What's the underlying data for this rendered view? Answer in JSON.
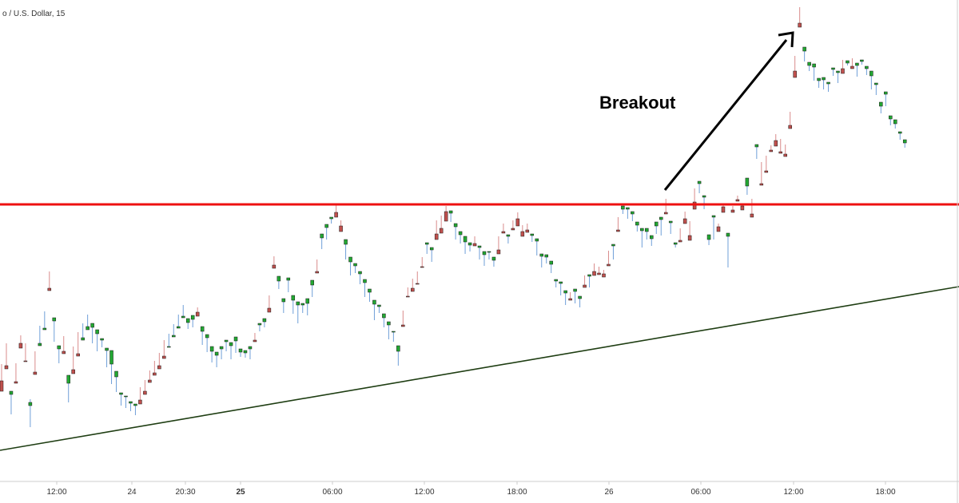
{
  "chart_data": {
    "type": "candlestick",
    "symbol_title": "o / U.S. Dollar, 15",
    "x_ticks": [
      {
        "label": "12:00",
        "bold": false
      },
      {
        "label": "24",
        "bold": false
      },
      {
        "label": "20:30",
        "bold": false
      },
      {
        "label": "25",
        "bold": true
      },
      {
        "label": "06:00",
        "bold": false
      },
      {
        "label": "12:00",
        "bold": false
      },
      {
        "label": "18:00",
        "bold": false
      },
      {
        "label": "26",
        "bold": false
      },
      {
        "label": "06:00",
        "bold": false
      },
      {
        "label": "12:00",
        "bold": false
      },
      {
        "label": "18:00",
        "bold": false
      }
    ],
    "annotation": {
      "text": "Breakout",
      "type": "arrow"
    },
    "resistance_line": {
      "color": "#ee1111"
    },
    "support_trendline": {
      "color": "#1e3d12"
    },
    "colors": {
      "bull": "#22a832",
      "bear": "#c0504d",
      "wick_bull": "#6f9fd8",
      "wick_bear": "#d98b8b",
      "grid": "#cccccc"
    },
    "candles": [
      [
        490,
        477,
        456,
        460
      ],
      [
        462,
        458,
        430,
        447
      ],
      [
        490,
        494,
        519,
        508
      ],
      [
        480,
        478,
        455,
        460
      ],
      [
        436,
        430,
        420,
        425
      ],
      [
        452,
        452,
        430,
        445
      ],
      [
        504,
        508,
        535,
        500
      ],
      [
        469,
        466,
        440,
        448
      ],
      [
        430,
        433,
        408,
        412
      ],
      [
        411,
        413,
        390,
        394
      ],
      [
        364,
        361,
        340,
        350
      ],
      [
        398,
        402,
        428,
        416
      ],
      [
        433,
        437,
        455,
        450
      ],
      [
        443,
        440,
        421,
        428
      ],
      [
        470,
        480,
        504,
        496
      ],
      [
        468,
        463,
        434,
        452
      ],
      [
        446,
        443,
        416,
        425
      ],
      [
        423,
        426,
        405,
        409
      ],
      [
        409,
        413,
        394,
        398
      ],
      [
        405,
        410,
        430,
        417
      ],
      [
        413,
        418,
        440,
        425
      ],
      [
        424,
        426,
        435,
        430
      ],
      [
        436,
        439,
        460,
        451
      ],
      [
        439,
        456,
        481,
        467
      ],
      [
        465,
        472,
        491,
        478
      ],
      [
        492,
        494,
        508,
        500
      ],
      [
        496,
        497,
        511,
        503
      ],
      [
        503,
        505,
        515,
        508
      ],
      [
        506,
        508,
        520,
        511
      ],
      [
        506,
        501,
        485,
        493
      ],
      [
        494,
        490,
        476,
        482
      ],
      [
        479,
        476,
        464,
        470
      ],
      [
        470,
        467,
        452,
        456
      ],
      [
        462,
        458,
        442,
        448
      ],
      [
        449,
        446,
        426,
        434
      ],
      [
        434,
        435,
        418,
        424
      ],
      [
        420,
        422,
        406,
        411
      ],
      [
        409,
        411,
        394,
        399
      ],
      [
        396,
        398,
        382,
        388
      ],
      [
        399,
        404,
        412,
        407
      ],
      [
        395,
        400,
        410,
        404
      ],
      [
        396,
        391,
        385,
        390
      ],
      [
        409,
        415,
        432,
        420
      ],
      [
        419,
        423,
        441,
        429
      ],
      [
        434,
        440,
        454,
        446
      ],
      [
        441,
        445,
        460,
        451
      ],
      [
        434,
        437,
        450,
        444
      ],
      [
        426,
        428,
        440,
        432
      ],
      [
        429,
        433,
        450,
        438
      ],
      [
        422,
        427,
        442,
        431
      ],
      [
        437,
        441,
        447,
        444
      ],
      [
        439,
        442,
        448,
        444
      ],
      [
        434,
        437,
        450,
        441
      ],
      [
        428,
        426,
        417,
        423
      ],
      [
        405,
        407,
        415,
        410
      ],
      [
        399,
        403,
        410,
        405
      ],
      [
        391,
        386,
        370,
        378
      ],
      [
        336,
        332,
        321,
        325
      ],
      [
        346,
        352,
        362,
        355
      ],
      [
        374,
        378,
        392,
        384
      ],
      [
        348,
        351,
        366,
        357
      ],
      [
        370,
        376,
        393,
        381
      ],
      [
        378,
        382,
        405,
        386
      ],
      [
        380,
        382,
        392,
        387
      ],
      [
        374,
        380,
        395,
        381
      ],
      [
        351,
        357,
        372,
        360
      ],
      [
        342,
        340,
        325,
        330
      ],
      [
        293,
        298,
        312,
        302
      ],
      [
        281,
        285,
        300,
        290
      ],
      [
        272,
        274,
        280,
        277
      ],
      [
        272,
        266,
        256,
        263
      ],
      [
        290,
        283,
        276,
        280
      ],
      [
        300,
        306,
        325,
        314
      ],
      [
        322,
        328,
        345,
        331
      ],
      [
        330,
        333,
        342,
        335
      ],
      [
        340,
        343,
        356,
        347
      ],
      [
        350,
        354,
        372,
        360
      ],
      [
        362,
        366,
        378,
        370
      ],
      [
        376,
        381,
        401,
        388
      ],
      [
        382,
        384,
        392,
        386
      ],
      [
        393,
        398,
        410,
        401
      ],
      [
        403,
        407,
        425,
        415
      ],
      [
        415,
        416,
        428,
        422
      ],
      [
        433,
        440,
        458,
        450
      ],
      [
        409,
        407,
        389,
        396
      ],
      [
        372,
        371,
        360,
        365
      ],
      [
        365,
        361,
        349,
        355
      ],
      [
        356,
        355,
        340,
        347
      ],
      [
        335,
        334,
        322,
        328
      ],
      [
        304,
        306,
        318,
        311
      ],
      [
        310,
        313,
        328,
        316
      ],
      [
        300,
        293,
        276,
        282
      ],
      [
        292,
        286,
        270,
        278
      ],
      [
        277,
        265,
        258,
        262
      ],
      [
        264,
        267,
        278,
        270
      ],
      [
        280,
        284,
        300,
        292
      ],
      [
        290,
        294,
        305,
        298
      ],
      [
        296,
        303,
        318,
        306
      ],
      [
        304,
        307,
        315,
        309
      ],
      [
        308,
        305,
        296,
        302
      ],
      [
        308,
        310,
        325,
        314
      ],
      [
        315,
        319,
        333,
        323
      ],
      [
        315,
        316,
        325,
        320
      ],
      [
        322,
        326,
        334,
        329
      ],
      [
        318,
        313,
        296,
        306
      ],
      [
        292,
        290,
        280,
        287
      ],
      [
        294,
        296,
        305,
        299
      ],
      [
        288,
        286,
        276,
        281
      ],
      [
        283,
        274,
        266,
        270
      ],
      [
        296,
        290,
        282,
        286
      ],
      [
        291,
        288,
        280,
        284
      ],
      [
        293,
        295,
        303,
        297
      ],
      [
        299,
        302,
        320,
        305
      ],
      [
        318,
        321,
        335,
        324
      ],
      [
        319,
        322,
        330,
        325
      ],
      [
        327,
        331,
        342,
        334
      ],
      [
        350,
        352,
        360,
        355
      ],
      [
        353,
        355,
        370,
        358
      ],
      [
        364,
        367,
        382,
        370
      ],
      [
        376,
        374,
        366,
        371
      ],
      [
        362,
        365,
        380,
        368
      ],
      [
        371,
        374,
        385,
        377
      ],
      [
        360,
        357,
        345,
        349
      ],
      [
        344,
        346,
        360,
        350
      ],
      [
        345,
        340,
        330,
        335
      ],
      [
        344,
        342,
        334,
        338
      ],
      [
        347,
        343,
        338,
        341
      ],
      [
        333,
        331,
        314,
        322
      ],
      [
        306,
        308,
        325,
        312
      ],
      [
        290,
        288,
        272,
        282
      ],
      [
        258,
        262,
        268,
        263
      ],
      [
        260,
        262,
        274,
        264
      ],
      [
        265,
        268,
        277,
        270
      ],
      [
        278,
        282,
        290,
        285
      ],
      [
        286,
        289,
        310,
        293
      ],
      [
        286,
        290,
        300,
        293
      ],
      [
        295,
        299,
        308,
        300
      ],
      [
        278,
        283,
        293,
        285
      ],
      [
        272,
        275,
        295,
        278
      ],
      [
        268,
        266,
        249,
        255
      ],
      [
        277,
        279,
        293,
        284
      ],
      [
        304,
        306,
        310,
        308
      ],
      [
        303,
        301,
        286,
        295
      ],
      [
        280,
        274,
        265,
        272
      ],
      [
        301,
        295,
        277,
        281
      ],
      [
        262,
        253,
        236,
        240
      ],
      [
        227,
        230,
        242,
        231
      ],
      [
        245,
        247,
        262,
        257
      ],
      [
        294,
        300,
        307,
        297
      ],
      [
        270,
        272,
        300,
        275
      ],
      [
        290,
        284,
        280,
        284
      ],
      [
        266,
        259,
        255,
        261
      ],
      [
        292,
        296,
        335,
        303
      ],
      [
        266,
        263,
        258,
        260
      ],
      [
        252,
        250,
        245,
        247
      ],
      [
        263,
        258,
        255,
        258
      ],
      [
        223,
        233,
        244,
        236
      ],
      [
        272,
        268,
        249,
        256
      ],
      [
        181,
        184,
        199,
        187
      ],
      [
        232,
        230,
        203,
        209
      ],
      [
        216,
        214,
        195,
        198
      ],
      [
        190,
        188,
        182,
        186
      ],
      [
        183,
        176,
        168,
        172
      ],
      [
        192,
        190,
        174,
        180
      ],
      [
        196,
        193,
        181,
        186
      ],
      [
        161,
        157,
        140,
        146
      ],
      [
        97,
        89,
        70,
        84
      ],
      [
        34,
        29,
        9,
        25
      ],
      [
        59,
        64,
        77,
        67
      ],
      [
        78,
        82,
        89,
        84
      ],
      [
        80,
        84,
        101,
        89
      ],
      [
        98,
        101,
        110,
        104
      ],
      [
        97,
        100,
        112,
        103
      ],
      [
        103,
        105,
        115,
        108
      ],
      [
        85,
        87,
        95,
        88
      ],
      [
        89,
        91,
        104,
        96
      ],
      [
        92,
        86,
        75,
        81
      ],
      [
        76,
        79,
        82,
        79
      ],
      [
        86,
        83,
        73,
        78
      ],
      [
        79,
        82,
        96,
        84
      ],
      [
        75,
        77,
        81,
        77
      ],
      [
        83,
        86,
        94,
        88
      ],
      [
        89,
        95,
        112,
        99
      ],
      [
        104,
        106,
        119,
        109
      ],
      [
        128,
        133,
        142,
        136
      ],
      [
        115,
        118,
        133,
        121
      ],
      [
        145,
        149,
        157,
        152
      ],
      [
        150,
        155,
        161,
        154
      ],
      [
        165,
        167,
        175,
        169
      ],
      [
        175,
        179,
        185,
        178
      ]
    ]
  }
}
